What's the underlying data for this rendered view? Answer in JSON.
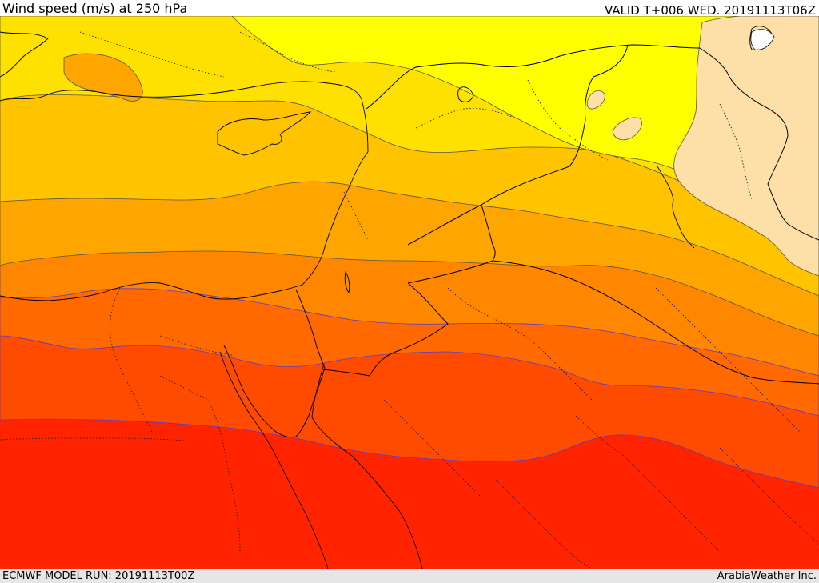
{
  "header": {
    "title": "Wind speed (m/s) at 250 hPa",
    "valid": "VALID T+006 WED. 20191113T06Z"
  },
  "footer": {
    "model_run": "ECMWF MODEL RUN: 20191113T00Z",
    "credit": "ArabiaWeather Inc."
  },
  "map": {
    "variable": "wind speed",
    "unit": "m/s",
    "level_hpa": 250,
    "band_colors": {
      "lightest": "#ffdfa8",
      "yellow": "#ffff00",
      "yellow_orange": "#ffe100",
      "light_orange": "#ffc300",
      "orange": "#ffa500",
      "dark_orange": "#ff8700",
      "orange_red": "#ff6900",
      "red_orange": "#ff4b00",
      "red": "#ff2300"
    }
  }
}
